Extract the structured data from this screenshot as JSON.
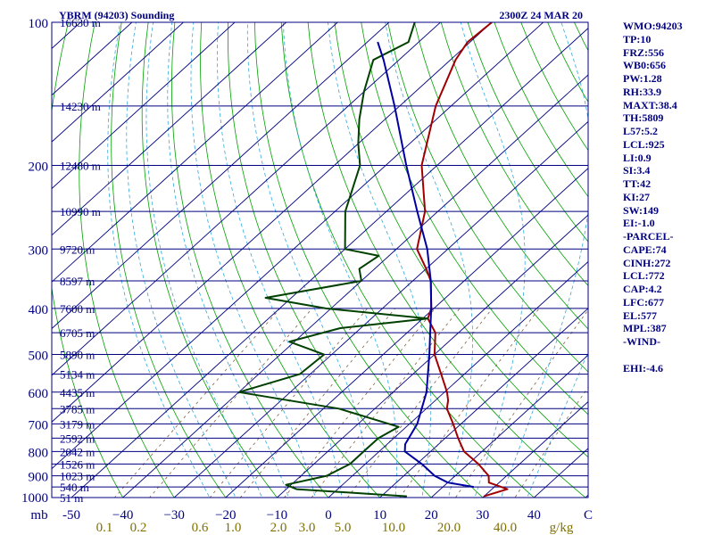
{
  "chart_data": {
    "type": "skew-t",
    "title_left": "YBRM (94203) Sounding",
    "title_right": "2300Z 24 MAR 20",
    "pressure_axis": {
      "range": [
        1000,
        100
      ],
      "labels": [
        {
          "p": 100,
          "text": "100"
        },
        {
          "p": 200,
          "text": "200"
        },
        {
          "p": 300,
          "text": "300"
        },
        {
          "p": 400,
          "text": "400"
        },
        {
          "p": 500,
          "text": "500"
        },
        {
          "p": 600,
          "text": "600"
        },
        {
          "p": 700,
          "text": "700"
        },
        {
          "p": 800,
          "text": "800"
        },
        {
          "p": 900,
          "text": "900"
        },
        {
          "p": 1000,
          "text": "1000"
        }
      ],
      "unit_label": "mb"
    },
    "height_levels": [
      {
        "p": 100,
        "text": "16630 m"
      },
      {
        "p": 150,
        "text": "14230 m"
      },
      {
        "p": 200,
        "text": "12480 m"
      },
      {
        "p": 250,
        "text": "10990 m"
      },
      {
        "p": 300,
        "text": "9720 m"
      },
      {
        "p": 350,
        "text": "8597 m"
      },
      {
        "p": 400,
        "text": "7600 m"
      },
      {
        "p": 450,
        "text": "6705 m"
      },
      {
        "p": 500,
        "text": "5890 m"
      },
      {
        "p": 550,
        "text": "5134 m"
      },
      {
        "p": 600,
        "text": "4435 m"
      },
      {
        "p": 650,
        "text": "3785 m"
      },
      {
        "p": 700,
        "text": "3179 m"
      },
      {
        "p": 750,
        "text": "2592 m"
      },
      {
        "p": 800,
        "text": "2042 m"
      },
      {
        "p": 850,
        "text": "1526 m"
      },
      {
        "p": 900,
        "text": "1023 m"
      },
      {
        "p": 950,
        "text": "540 m"
      },
      {
        "p": 1000,
        "text": "51 m"
      }
    ],
    "temperature_axis": {
      "ticks": [
        -50,
        -40,
        -30,
        -20,
        -10,
        0,
        10,
        20,
        30,
        40
      ],
      "labels": [
        "-50",
        "−40",
        "−30",
        "−20",
        "−10",
        "0",
        "10",
        "20",
        "30",
        "40"
      ],
      "end_label": "C"
    },
    "mixing_ratio_labels": [
      "0.1",
      "0.2",
      "0.6",
      "1.0",
      "2.0",
      "3.0",
      "5.0",
      "10.0",
      "20.0",
      "40.0"
    ],
    "mixing_ratio_unit": "g/kg",
    "series": [
      {
        "key": "temperature",
        "color": "#a00000",
        "points": [
          [
            994,
            30.0
          ],
          [
            960,
            33.0
          ],
          [
            930,
            28.0
          ],
          [
            900,
            26.5
          ],
          [
            850,
            22.0
          ],
          [
            800,
            16.5
          ],
          [
            750,
            12.5
          ],
          [
            700,
            8.5
          ],
          [
            650,
            4.0
          ],
          [
            625,
            2.5
          ],
          [
            600,
            0.5
          ],
          [
            550,
            -4.5
          ],
          [
            500,
            -10.0
          ],
          [
            450,
            -14.5
          ],
          [
            420,
            -19.0
          ],
          [
            400,
            -20.5
          ],
          [
            350,
            -26.5
          ],
          [
            330,
            -30.0
          ],
          [
            300,
            -36.0
          ],
          [
            250,
            -42.5
          ],
          [
            200,
            -53.0
          ],
          [
            150,
            -63.0
          ],
          [
            120,
            -69.0
          ],
          [
            110,
            -70.5
          ],
          [
            100,
            -70.0
          ]
        ]
      },
      {
        "key": "dewpoint",
        "color": "#004000",
        "points": [
          [
            994,
            15.0
          ],
          [
            960,
            -8.0
          ],
          [
            940,
            -11.0
          ],
          [
            900,
            -5.0
          ],
          [
            850,
            -3.0
          ],
          [
            800,
            -3.0
          ],
          [
            750,
            -3.0
          ],
          [
            710,
            -1.5
          ],
          [
            650,
            -17.0
          ],
          [
            600,
            -40.0
          ],
          [
            550,
            -32.0
          ],
          [
            500,
            -31.5
          ],
          [
            470,
            -41.0
          ],
          [
            440,
            -34.0
          ],
          [
            420,
            -19.0
          ],
          [
            400,
            -41.0
          ],
          [
            380,
            -55.0
          ],
          [
            350,
            -40.0
          ],
          [
            330,
            -43.0
          ],
          [
            310,
            -42.0
          ],
          [
            300,
            -50.0
          ],
          [
            250,
            -58.0
          ],
          [
            200,
            -65.0
          ],
          [
            180,
            -70.0
          ],
          [
            160,
            -75.0
          ],
          [
            140,
            -80.0
          ],
          [
            120,
            -85.0
          ],
          [
            110,
            -82.0
          ],
          [
            100,
            -85.0
          ]
        ]
      },
      {
        "key": "parcel",
        "color": "#0000a0",
        "points": [
          [
            950,
            26.0
          ],
          [
            930,
            20.0
          ],
          [
            900,
            16.0
          ],
          [
            850,
            11.0
          ],
          [
            800,
            5.0
          ],
          [
            772,
            3.5
          ],
          [
            700,
            1.5
          ],
          [
            600,
            -3.5
          ],
          [
            500,
            -11.0
          ],
          [
            450,
            -15.5
          ],
          [
            400,
            -20.5
          ],
          [
            350,
            -26.5
          ],
          [
            300,
            -34.0
          ],
          [
            250,
            -44.0
          ],
          [
            200,
            -56.0
          ],
          [
            150,
            -71.0
          ],
          [
            120,
            -83.0
          ],
          [
            110,
            -88.0
          ]
        ]
      }
    ],
    "grid": true
  },
  "parameters": [
    "WMO:94203",
    "TP:10",
    "FRZ:556",
    "WB0:656",
    "PW:1.28",
    "RH:33.9",
    "MAXT:38.4",
    "TH:5809",
    "L57:5.2",
    "LCL:925",
    "LI:0.9",
    "SI:3.4",
    "TT:42",
    "KI:27",
    "SW:149",
    "EI:-1.0",
    "-PARCEL-",
    "CAPE:74",
    "CINH:272",
    "LCL:772",
    "CAP:4.2",
    "LFC:677",
    "EL:577",
    "MPL:387",
    "-WIND-",
    "",
    "EHI:-4.6"
  ],
  "colors": {
    "axis": "#000080",
    "isobar": "#000080",
    "isotherm": "#000080",
    "dry_adiabat": "#00a000",
    "moist_adiabat": "#33aadd",
    "mixing_ratio": "#806040",
    "mixing_label": "#807000",
    "parcel": "#0000a0",
    "temperature": "#a00000",
    "dewpoint": "#004000"
  }
}
